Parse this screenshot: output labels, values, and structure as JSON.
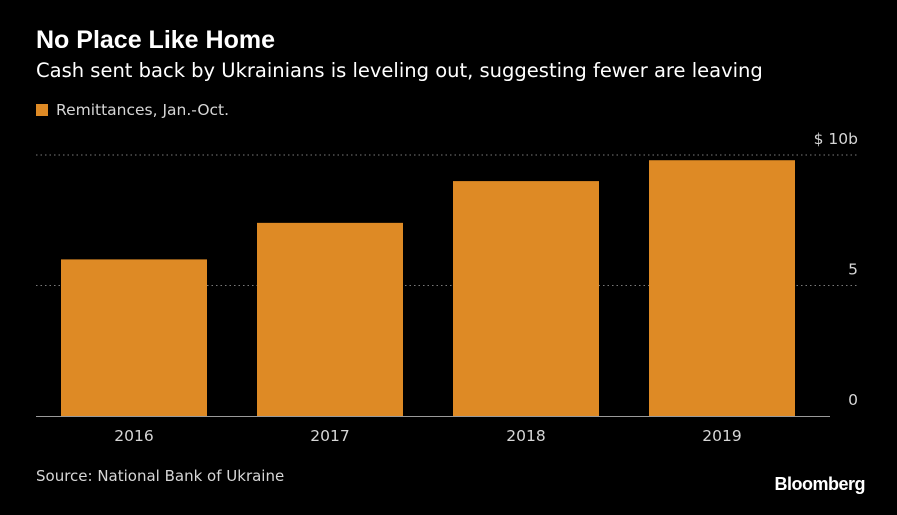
{
  "colors": {
    "background": "#000000",
    "bar": "#DE8A25",
    "grid": "#7a7a7a",
    "axis": "#9a9a9a",
    "text": "#ffffff",
    "muted": "#d6d6d6"
  },
  "chart_data": {
    "type": "bar",
    "title": "No Place Like Home",
    "subtitle": "Cash sent back by Ukrainians is leveling out, suggesting fewer are leaving",
    "categories": [
      "2016",
      "2017",
      "2018",
      "2019"
    ],
    "series": [
      {
        "name": "Remittances, Jan.-Oct.",
        "values": [
          6.0,
          7.4,
          9.0,
          9.8
        ]
      }
    ],
    "ylim": [
      0,
      10
    ],
    "yticks": [
      {
        "value": 0,
        "label": "0"
      },
      {
        "value": 5,
        "label": "5"
      },
      {
        "value": 10,
        "label": "$ 10b"
      }
    ],
    "grid": true,
    "legend": "top-left",
    "xlabel": "",
    "ylabel": ""
  },
  "footer": {
    "source": "Source: National Bank of Ukraine",
    "brand": "Bloomberg"
  }
}
